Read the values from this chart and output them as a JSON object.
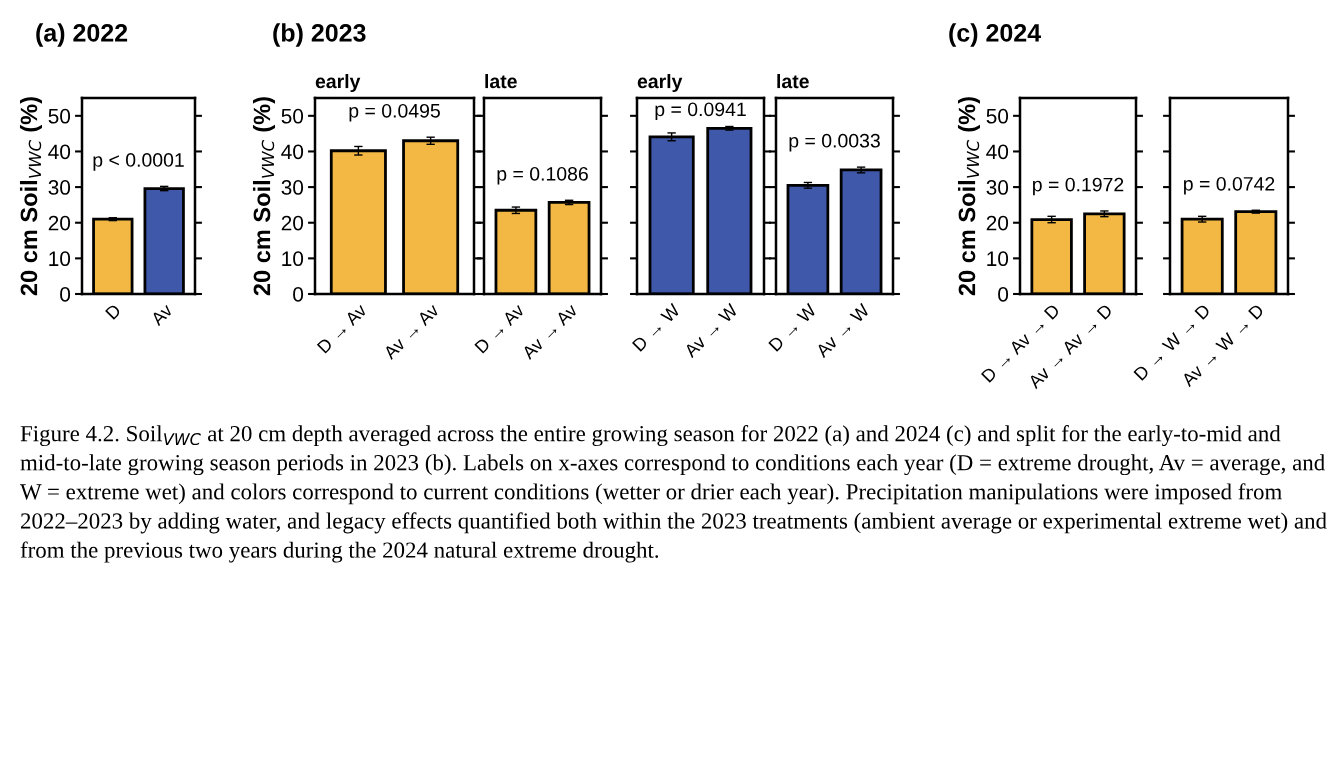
{
  "chart_data": [
    {
      "type": "bar",
      "title": "(a) 2022",
      "ylabel": "20 cm Soil$_{VWC}$ (%)",
      "categories": [
        "D",
        "Av"
      ],
      "values": [
        21.0,
        29.6
      ],
      "errors": [
        0.4,
        0.6
      ],
      "colors": [
        "#f2b843",
        "#3f58a9"
      ],
      "ylim": [
        0,
        55
      ],
      "yticks": [
        0,
        10,
        20,
        30,
        40,
        50
      ],
      "grid": false,
      "annotations": [
        "p < 0.0001",
        "Figure 4.2. Soil$_{VWC}$ at 20 cm depth averaged across the entire growing season for 2022 (a) and 2024 (c) and split for the early-to-mid and mid-to-late growing season periods in 2023 (b). Labels on x-axes correspond to conditions each year (D = extreme drought, Av = average, and W = extreme wet) and colors correspond to current conditions (wetter or drier each year). Precipitation manipulations were imposed from 2022–2023 by adding water, and legacy effects quantified both within the 2023 treatments (ambient average or experimental extreme wet) and from the previous two years during the 2024 natural extreme drought."
      ]
    },
    {
      "type": "bar",
      "title": "(b) 2023",
      "subtitle": "early",
      "ylabel": "20 cm Soil$_{VWC}$ (%)",
      "categories": [
        "D → Av",
        "Av → Av"
      ],
      "values": [
        40.2,
        43.0
      ],
      "errors": [
        1.2,
        1.0
      ],
      "colors": [
        "#f2b843",
        "#f2b843"
      ],
      "ylim": [
        0,
        55
      ],
      "yticks": [
        0,
        10,
        20,
        30,
        40,
        50
      ],
      "grid": false,
      "annotations": [
        "p = 0.0495"
      ]
    },
    {
      "type": "bar",
      "subtitle": "late",
      "categories": [
        "D → Av",
        "Av → Av"
      ],
      "values": [
        23.5,
        25.7
      ],
      "errors": [
        0.9,
        0.6
      ],
      "colors": [
        "#f2b843",
        "#f2b843"
      ],
      "ylim": [
        0,
        55
      ],
      "yticks": [
        0,
        10,
        20,
        30,
        40,
        50
      ],
      "tick_labels": "x",
      "grid": false,
      "annotations": [
        "p = 0.1086"
      ]
    },
    {
      "type": "bar",
      "subtitle": "early",
      "categories": [
        "D → W",
        "Av → W"
      ],
      "values": [
        44.1,
        46.5
      ],
      "errors": [
        1.1,
        0.5
      ],
      "colors": [
        "#3f58a9",
        "#3f58a9"
      ],
      "ylim": [
        0,
        55
      ],
      "yticks": [
        0,
        10,
        20,
        30,
        40,
        50
      ],
      "tick_labels": "x",
      "grid": false,
      "annotations": [
        "p = 0.0941"
      ]
    },
    {
      "type": "bar",
      "subtitle": "late",
      "categories": [
        "D → W",
        "Av → W"
      ],
      "values": [
        30.5,
        34.8
      ],
      "errors": [
        0.8,
        0.8
      ],
      "colors": [
        "#3f58a9",
        "#3f58a9"
      ],
      "ylim": [
        0,
        55
      ],
      "yticks": [
        0,
        10,
        20,
        30,
        40,
        50
      ],
      "tick_labels": "x",
      "grid": false,
      "annotations": [
        "p = 0.0033"
      ]
    },
    {
      "type": "bar",
      "title": "(c) 2024",
      "ylabel": "20 cm Soil$_{VWC}$ (%)",
      "categories": [
        "D → Av → D",
        "Av → Av → D"
      ],
      "values": [
        20.9,
        22.5
      ],
      "errors": [
        0.9,
        0.8
      ],
      "colors": [
        "#f2b843",
        "#f2b843"
      ],
      "ylim": [
        0,
        55
      ],
      "yticks": [
        0,
        10,
        20,
        30,
        40,
        50
      ],
      "grid": false,
      "annotations": [
        "p = 0.1972"
      ]
    },
    {
      "type": "bar",
      "categories": [
        "D → W → D",
        "Av → W → D"
      ],
      "values": [
        21.0,
        23.1
      ],
      "errors": [
        0.8,
        0.4
      ],
      "colors": [
        "#f2b843",
        "#f2b843"
      ],
      "ylim": [
        0,
        55
      ],
      "yticks": [
        0,
        10,
        20,
        30,
        40,
        50
      ],
      "tick_labels": "x",
      "grid": false,
      "annotations": [
        "p = 0.0742"
      ]
    }
  ]
}
